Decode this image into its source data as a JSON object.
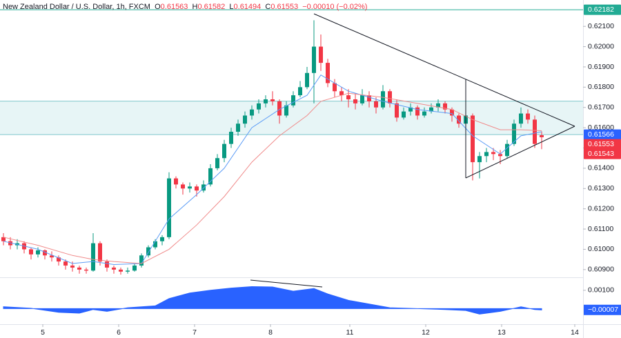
{
  "chart_data": {
    "type": "candlestick",
    "title": "New Zealand Dollar / U.S. Dollar, 1h, FXCM",
    "ohlc_header": [
      {
        "label": "O",
        "value": 0.61563
      },
      {
        "label": "H",
        "value": 0.61582
      },
      {
        "label": "L",
        "value": 0.61494
      },
      {
        "label": "C",
        "value": 0.61553
      }
    ],
    "change": "−0.00010 (−0.02%)",
    "up_color": "#089981",
    "down_color": "#f23645",
    "xlim": [
      -0.5,
      84
    ],
    "xticks": [
      {
        "value": 5.7,
        "label": "5"
      },
      {
        "value": 16.7,
        "label": "6"
      },
      {
        "value": 27.7,
        "label": "7"
      },
      {
        "value": 38.7,
        "label": "8"
      },
      {
        "value": 50.2,
        "label": "11"
      },
      {
        "value": 61.2,
        "label": "12"
      },
      {
        "value": 72.2,
        "label": "13"
      },
      {
        "value": 82.8,
        "label": "14"
      }
    ],
    "ylim": [
      0.60862,
      0.6223
    ],
    "yticks": [
      {
        "value": 0.609,
        "label": "0.60900"
      },
      {
        "value": 0.61,
        "label": "0.61000"
      },
      {
        "value": 0.611,
        "label": "0.61100"
      },
      {
        "value": 0.612,
        "label": "0.61200"
      },
      {
        "value": 0.613,
        "label": "0.61300"
      },
      {
        "value": 0.614,
        "label": "0.61400"
      },
      {
        "value": 0.615,
        "label": "0.61500"
      },
      {
        "value": 0.616,
        "label": "0.61600"
      },
      {
        "value": 0.617,
        "label": "0.61700"
      },
      {
        "value": 0.618,
        "label": "0.61800"
      },
      {
        "value": 0.619,
        "label": "0.61900"
      },
      {
        "value": 0.62,
        "label": "0.62000"
      },
      {
        "value": 0.621,
        "label": "0.62100"
      }
    ],
    "candles": [
      [
        0.6106,
        0.6108,
        0.6102,
        0.6104
      ],
      [
        0.6104,
        0.6106,
        0.61,
        0.6102
      ],
      [
        0.6102,
        0.6105,
        0.61,
        0.6103
      ],
      [
        0.6103,
        0.6104,
        0.6098,
        0.61
      ],
      [
        0.61,
        0.6101,
        0.6095,
        0.60975
      ],
      [
        0.60975,
        0.6101,
        0.6096,
        0.60995
      ],
      [
        0.60995,
        0.61,
        0.6095,
        0.6097
      ],
      [
        0.6097,
        0.6099,
        0.6094,
        0.6096
      ],
      [
        0.6096,
        0.6097,
        0.6092,
        0.6094
      ],
      [
        0.6094,
        0.6095,
        0.609,
        0.6092
      ],
      [
        0.6092,
        0.6094,
        0.6089,
        0.6091
      ],
      [
        0.6091,
        0.6092,
        0.6088,
        0.609
      ],
      [
        0.609,
        0.6091,
        0.6088,
        0.60895
      ],
      [
        0.60895,
        0.6108,
        0.6089,
        0.6103
      ],
      [
        0.6103,
        0.6104,
        0.6092,
        0.6094
      ],
      [
        0.6094,
        0.6095,
        0.6089,
        0.6091
      ],
      [
        0.6091,
        0.6092,
        0.6088,
        0.609
      ],
      [
        0.609,
        0.6091,
        0.60875,
        0.6089
      ],
      [
        0.6089,
        0.6091,
        0.6088,
        0.60895
      ],
      [
        0.60895,
        0.6093,
        0.6089,
        0.6092
      ],
      [
        0.6092,
        0.6098,
        0.6091,
        0.6097
      ],
      [
        0.6097,
        0.6102,
        0.6096,
        0.6101
      ],
      [
        0.6101,
        0.6105,
        0.61,
        0.6104
      ],
      [
        0.6104,
        0.6107,
        0.6102,
        0.6106
      ],
      [
        0.6106,
        0.6138,
        0.6105,
        0.6135
      ],
      [
        0.6135,
        0.6136,
        0.613,
        0.6132
      ],
      [
        0.6132,
        0.6133,
        0.6127,
        0.613
      ],
      [
        0.613,
        0.6133,
        0.6128,
        0.6131
      ],
      [
        0.6131,
        0.6132,
        0.6126,
        0.6129
      ],
      [
        0.6129,
        0.6134,
        0.6128,
        0.6132
      ],
      [
        0.6132,
        0.6142,
        0.6131,
        0.614
      ],
      [
        0.614,
        0.6147,
        0.6139,
        0.6145
      ],
      [
        0.6145,
        0.6154,
        0.6143,
        0.6152
      ],
      [
        0.6152,
        0.616,
        0.615,
        0.6158
      ],
      [
        0.6158,
        0.6164,
        0.6156,
        0.6162
      ],
      [
        0.6162,
        0.6168,
        0.616,
        0.6166
      ],
      [
        0.6166,
        0.6171,
        0.6164,
        0.6169
      ],
      [
        0.6169,
        0.6174,
        0.6167,
        0.6172
      ],
      [
        0.6172,
        0.6176,
        0.617,
        0.6174
      ],
      [
        0.6174,
        0.6178,
        0.6171,
        0.6173
      ],
      [
        0.6173,
        0.6174,
        0.6162,
        0.6166
      ],
      [
        0.6166,
        0.6173,
        0.6165,
        0.6171
      ],
      [
        0.6171,
        0.6178,
        0.617,
        0.6176
      ],
      [
        0.6176,
        0.6183,
        0.6175,
        0.618
      ],
      [
        0.618,
        0.619,
        0.6179,
        0.6187
      ],
      [
        0.6187,
        0.6213,
        0.6172,
        0.62
      ],
      [
        0.62,
        0.6206,
        0.6188,
        0.6192
      ],
      [
        0.6192,
        0.6194,
        0.618,
        0.6182
      ],
      [
        0.6182,
        0.6184,
        0.6175,
        0.6178
      ],
      [
        0.6178,
        0.618,
        0.6173,
        0.6176
      ],
      [
        0.6176,
        0.6179,
        0.617,
        0.6174
      ],
      [
        0.6174,
        0.6177,
        0.6169,
        0.6172
      ],
      [
        0.6172,
        0.6179,
        0.6171,
        0.6176
      ],
      [
        0.6176,
        0.6178,
        0.617,
        0.6173
      ],
      [
        0.6173,
        0.6175,
        0.6167,
        0.617
      ],
      [
        0.617,
        0.6181,
        0.6169,
        0.6178
      ],
      [
        0.6178,
        0.6179,
        0.617,
        0.6172
      ],
      [
        0.6172,
        0.6174,
        0.6163,
        0.6165
      ],
      [
        0.6165,
        0.617,
        0.6164,
        0.6168
      ],
      [
        0.6168,
        0.6172,
        0.6166,
        0.617
      ],
      [
        0.617,
        0.6171,
        0.6164,
        0.6166
      ],
      [
        0.6166,
        0.617,
        0.6165,
        0.6168
      ],
      [
        0.6168,
        0.6172,
        0.6167,
        0.617
      ],
      [
        0.617,
        0.6174,
        0.6168,
        0.6172
      ],
      [
        0.6172,
        0.6173,
        0.6167,
        0.6169
      ],
      [
        0.6169,
        0.617,
        0.6163,
        0.6166
      ],
      [
        0.6166,
        0.6167,
        0.616,
        0.6162
      ],
      [
        0.6162,
        0.6184,
        0.6161,
        0.6166
      ],
      [
        0.6166,
        0.6167,
        0.6134,
        0.6143
      ],
      [
        0.6143,
        0.6148,
        0.6135,
        0.6146
      ],
      [
        0.6146,
        0.615,
        0.6143,
        0.6148
      ],
      [
        0.6148,
        0.615,
        0.6144,
        0.6147
      ],
      [
        0.6147,
        0.6149,
        0.6142,
        0.6146
      ],
      [
        0.6146,
        0.6154,
        0.6145,
        0.6152
      ],
      [
        0.6152,
        0.6164,
        0.6151,
        0.6162
      ],
      [
        0.6162,
        0.617,
        0.616,
        0.6167
      ],
      [
        0.6167,
        0.6169,
        0.6162,
        0.6164
      ],
      [
        0.6164,
        0.6166,
        0.615,
        0.6152
      ],
      [
        0.61563,
        0.61582,
        0.61494,
        0.61553
      ]
    ],
    "moving_averages": [
      {
        "color": "#5b9cf6",
        "x": [
          0,
          5,
          10,
          13,
          16,
          20,
          24,
          28,
          32,
          36,
          40,
          44,
          46,
          50,
          55,
          60,
          65,
          68,
          72,
          75,
          78
        ],
        "values": [
          0.6104,
          0.61,
          0.6093,
          0.6094,
          0.60925,
          0.6093,
          0.6115,
          0.6127,
          0.614,
          0.616,
          0.6169,
          0.6176,
          0.6186,
          0.6178,
          0.6173,
          0.6169,
          0.6167,
          0.6156,
          0.6147,
          0.6156,
          0.6158
        ]
      },
      {
        "color": "#f08a8a",
        "x": [
          0,
          5,
          10,
          13,
          16,
          20,
          24,
          28,
          32,
          36,
          40,
          44,
          46,
          50,
          55,
          60,
          65,
          68,
          72,
          75,
          78
        ],
        "values": [
          0.6106,
          0.6102,
          0.6097,
          0.6095,
          0.6094,
          0.6093,
          0.61,
          0.6112,
          0.6126,
          0.6143,
          0.6156,
          0.6166,
          0.6173,
          0.6177,
          0.6175,
          0.6172,
          0.6169,
          0.6164,
          0.6159,
          0.6159,
          0.61585
        ]
      }
    ],
    "zone": {
      "color": "#d7eef0",
      "edge_color": "#7fc6cc",
      "values": [
        0.61731,
        0.61566
      ]
    },
    "levels": [
      {
        "value": 0.62182,
        "label": "0.62182",
        "color": "#22ab94",
        "line": true
      },
      {
        "value": 0.61566,
        "label": "0.61566",
        "color": "#2962ff",
        "line": false
      },
      {
        "value": 0.61553,
        "label": "0.61553",
        "color": "#f23645",
        "line": false
      },
      {
        "value": 0.61543,
        "label": "0.61543",
        "color": "#f23645",
        "line": false
      }
    ],
    "oscillator": {
      "color": "#2962ff",
      "ylim": [
        -0.00085,
        0.00167
      ],
      "yticks": [
        {
          "value": 0.001,
          "label": "0.00100"
        }
      ],
      "x": [
        0,
        4,
        8,
        11,
        13,
        15,
        18,
        20,
        22,
        24,
        27,
        30,
        33,
        36,
        39,
        42,
        45,
        47,
        50,
        53,
        56,
        60,
        64,
        67,
        69,
        72,
        75,
        77,
        78
      ],
      "values": [
        0.0001,
        2e-05,
        -0.0002,
        -0.00025,
        -5e-05,
        -0.00015,
        5e-05,
        0.0001,
        0.00015,
        0.00055,
        0.00085,
        0.001,
        0.00112,
        0.0012,
        0.00118,
        0.00095,
        0.0011,
        0.0008,
        0.00045,
        0.00025,
        5e-05,
        0,
        -5e-05,
        -0.0001,
        -0.0003,
        -0.00015,
        0.0001,
        -5e-05,
        -7e-05
      ],
      "last_label": {
        "value": -7e-05,
        "label": "−0.00007"
      }
    }
  }
}
